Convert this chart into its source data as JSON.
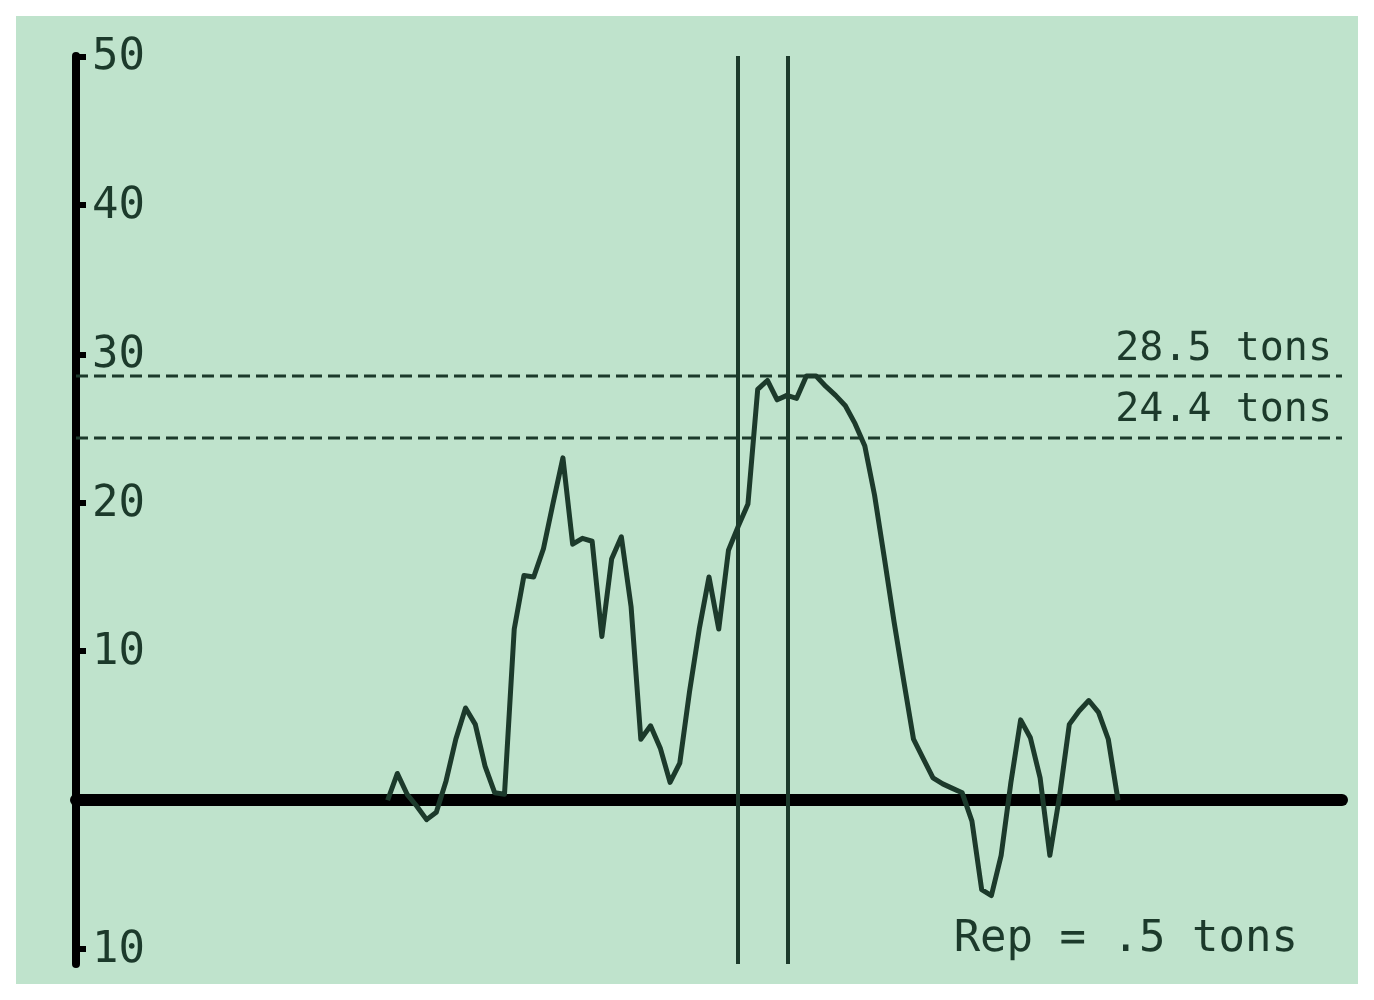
{
  "chart_data": {
    "type": "line",
    "annotations": [
      "Rep = .5 tons"
    ],
    "categories": [
      null,
      null,
      null,
      null,
      null,
      null,
      null,
      null,
      null,
      null,
      null,
      null,
      null,
      null,
      null,
      null,
      null,
      null,
      null,
      null,
      null,
      null,
      null,
      null,
      null,
      null,
      null,
      null,
      null,
      null,
      null,
      null,
      null,
      null,
      null,
      null,
      null,
      null,
      null,
      null,
      null,
      null,
      null,
      null,
      null,
      null,
      null,
      null,
      null,
      null,
      null,
      null,
      null,
      null,
      null,
      null,
      null,
      null,
      null,
      null,
      null,
      null,
      null,
      null,
      null,
      null,
      null,
      null,
      null,
      null,
      null,
      null,
      null,
      null,
      null,
      null,
      null,
      null,
      null,
      null,
      null,
      null,
      null,
      null,
      null,
      null,
      null,
      null,
      null,
      null,
      null,
      null,
      null,
      null,
      null,
      null,
      null,
      null,
      null,
      null,
      null,
      null,
      null,
      null,
      null,
      null,
      null,
      null,
      null,
      null,
      null,
      null,
      null,
      null,
      null,
      null,
      null,
      null,
      null,
      null,
      null,
      null,
      null,
      null,
      null,
      null,
      null,
      null,
      null,
      null,
      null
    ],
    "series": [
      {
        "color": "#1c3a2b",
        "values": [
          null,
          null,
          null,
          null,
          null,
          null,
          null,
          null,
          null,
          null,
          null,
          null,
          null,
          null,
          null,
          null,
          null,
          null,
          null,
          null,
          null,
          null,
          null,
          null,
          null,
          null,
          null,
          null,
          null,
          null,
          null,
          null,
          0,
          1.8,
          0.4,
          -0.4,
          -1.3,
          -0.8,
          1.3,
          4.1,
          6.2,
          5.1,
          2.3,
          0.5,
          0.4,
          11.5,
          15.1,
          15,
          16.9,
          20,
          23,
          17.2,
          17.6,
          17.4,
          11,
          16.2,
          17.7,
          13,
          4.1,
          5,
          3.5,
          1.2,
          2.5,
          7.3,
          11.5,
          15,
          11.5,
          16.8,
          18.4,
          19.9,
          27.6,
          28.2,
          26.9,
          27.2,
          27,
          28.5,
          28.5,
          27.8,
          27.2,
          26.5,
          25.3,
          23.8,
          20.5,
          16.3,
          12,
          8,
          4.1,
          2.8,
          1.5,
          1.1,
          0.8,
          0.5,
          -1.4,
          -6,
          -6.4,
          -3.7,
          1.2,
          5.4,
          4.2,
          1.5,
          -3.7,
          0.3,
          5.1,
          6,
          6.7,
          5.9,
          4.1,
          0,
          null,
          null,
          null,
          null,
          null,
          null,
          null,
          null,
          null,
          null,
          null,
          null,
          null,
          null,
          null,
          null,
          null,
          null,
          null,
          null,
          null,
          null,
          null
        ]
      }
    ],
    "ylim": [
      -11,
      50
    ],
    "yticks": [
      {
        "value": -10,
        "label": "10"
      },
      10,
      20,
      30,
      40,
      50
    ],
    "tick_labels": "y",
    "grid": false,
    "line_style": "solid",
    "ref_lines": [
      {
        "axis": "y",
        "value": 28.5,
        "label": "28.5 tons",
        "line_style": "dashed"
      },
      {
        "axis": "y",
        "value": 24.4,
        "label": "24.4 tons",
        "line_style": "dashed"
      }
    ]
  }
}
